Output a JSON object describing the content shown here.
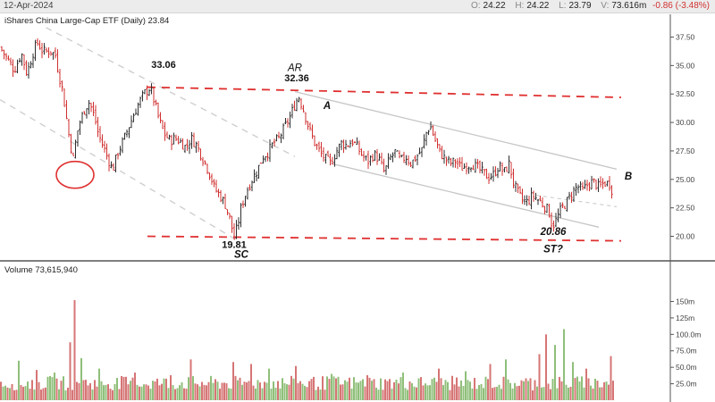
{
  "header": {
    "date": "12-Apr-2024",
    "ohlc": [
      {
        "key": "O:",
        "value": "24.22"
      },
      {
        "key": "H:",
        "value": "24.22"
      },
      {
        "key": "L:",
        "value": "23.79"
      },
      {
        "key": "V:",
        "value": "73.616m"
      }
    ],
    "change": "-0.86 (-3.48%)"
  },
  "chart_data": [
    {
      "type": "bar",
      "title": "iShares China Large-Cap ETF (Daily) 23.84",
      "ylim": [
        18,
        39.5
      ],
      "y_ticks": [
        "37.50",
        "35.00",
        "32.50",
        "30.00",
        "27.50",
        "25.00",
        "22.50",
        "20.00"
      ],
      "y_tick_values": [
        37.5,
        35,
        32.5,
        30,
        27.5,
        25,
        22.5,
        20
      ],
      "grid": false,
      "colors": {
        "up": "#2e2e2e",
        "down": "#d13030",
        "resistance": "#e03030",
        "channel": "#c6c6c6",
        "dashed_channel": "#cfcfcf"
      },
      "price_path": [
        [
          0,
          36.6
        ],
        [
          8,
          35.6
        ],
        [
          16,
          34.6
        ],
        [
          24,
          36.1
        ],
        [
          30,
          34.3
        ],
        [
          38,
          36.4
        ],
        [
          42,
          37.0
        ],
        [
          48,
          36.2
        ],
        [
          56,
          36.3
        ],
        [
          62,
          35.9
        ],
        [
          66,
          34.2
        ],
        [
          70,
          32.8
        ],
        [
          74,
          30.6
        ],
        [
          78,
          28.4
        ],
        [
          82,
          26.8
        ],
        [
          86,
          29.0
        ],
        [
          90,
          30.2
        ],
        [
          96,
          31.4
        ],
        [
          100,
          31.8
        ],
        [
          106,
          30.4
        ],
        [
          110,
          29.0
        ],
        [
          116,
          27.8
        ],
        [
          122,
          26.6
        ],
        [
          126,
          25.8
        ],
        [
          132,
          27.4
        ],
        [
          138,
          28.4
        ],
        [
          144,
          29.6
        ],
        [
          150,
          30.8
        ],
        [
          156,
          31.8
        ],
        [
          162,
          32.6
        ],
        [
          168,
          33.06
        ],
        [
          172,
          32.0
        ],
        [
          178,
          30.2
        ],
        [
          184,
          29.0
        ],
        [
          190,
          28.4
        ],
        [
          196,
          28.6
        ],
        [
          202,
          28.3
        ],
        [
          208,
          27.8
        ],
        [
          214,
          28.6
        ],
        [
          220,
          28.0
        ],
        [
          226,
          27.0
        ],
        [
          232,
          26.0
        ],
        [
          236,
          25.2
        ],
        [
          240,
          24.2
        ],
        [
          246,
          23.6
        ],
        [
          252,
          22.8
        ],
        [
          258,
          21.3
        ],
        [
          262,
          19.81
        ],
        [
          266,
          21.0
        ],
        [
          270,
          22.6
        ],
        [
          276,
          24.0
        ],
        [
          282,
          25.0
        ],
        [
          288,
          25.8
        ],
        [
          294,
          27.0
        ],
        [
          300,
          27.4
        ],
        [
          306,
          28.2
        ],
        [
          312,
          28.6
        ],
        [
          318,
          29.5
        ],
        [
          324,
          30.4
        ],
        [
          330,
          31.6
        ],
        [
          334,
          32.36
        ],
        [
          340,
          31.0
        ],
        [
          346,
          29.4
        ],
        [
          352,
          28.2
        ],
        [
          358,
          27.4
        ],
        [
          364,
          26.8
        ],
        [
          370,
          26.4
        ],
        [
          376,
          27.4
        ],
        [
          382,
          28.2
        ],
        [
          388,
          28.0
        ],
        [
          394,
          28.4
        ],
        [
          400,
          27.8
        ],
        [
          406,
          27.0
        ],
        [
          412,
          26.6
        ],
        [
          418,
          27.2
        ],
        [
          424,
          26.8
        ],
        [
          430,
          25.6
        ],
        [
          436,
          26.8
        ],
        [
          442,
          27.4
        ],
        [
          448,
          26.6
        ],
        [
          454,
          27.0
        ],
        [
          460,
          26.4
        ],
        [
          466,
          27.0
        ],
        [
          472,
          27.6
        ],
        [
          478,
          29.4
        ],
        [
          482,
          29.6
        ],
        [
          486,
          28.6
        ],
        [
          492,
          27.4
        ],
        [
          498,
          26.8
        ],
        [
          504,
          26.4
        ],
        [
          510,
          26.6
        ],
        [
          516,
          26.0
        ],
        [
          522,
          26.2
        ],
        [
          528,
          26.4
        ],
        [
          534,
          26.0
        ],
        [
          540,
          25.6
        ],
        [
          546,
          25.2
        ],
        [
          552,
          25.4
        ],
        [
          558,
          26.2
        ],
        [
          564,
          25.6
        ],
        [
          570,
          26.4
        ],
        [
          574,
          24.8
        ],
        [
          578,
          24.0
        ],
        [
          584,
          23.2
        ],
        [
          590,
          23.0
        ],
        [
          596,
          23.6
        ],
        [
          602,
          23.2
        ],
        [
          608,
          22.8
        ],
        [
          614,
          22.2
        ],
        [
          618,
          20.86
        ],
        [
          622,
          21.4
        ],
        [
          628,
          22.4
        ],
        [
          634,
          23.0
        ],
        [
          640,
          23.8
        ],
        [
          646,
          24.4
        ],
        [
          652,
          24.0
        ],
        [
          658,
          24.6
        ],
        [
          664,
          24.8
        ],
        [
          670,
          24.3
        ],
        [
          676,
          24.7
        ],
        [
          682,
          24.6
        ],
        [
          686,
          23.84
        ]
      ],
      "annotations": [
        {
          "id": "top-33",
          "text": "33.06",
          "price": 34.8
        },
        {
          "id": "ar-label",
          "text": "AR",
          "price": 34.5
        },
        {
          "id": "ar-value",
          "text": "32.36",
          "price": 33.6
        },
        {
          "id": "a-label",
          "text": "A",
          "price": 31.2
        },
        {
          "id": "b-label",
          "text": "B",
          "price": 25.0
        },
        {
          "id": "low-19",
          "text": "19.81",
          "price": 19.0
        },
        {
          "id": "sc-label",
          "text": "SC",
          "price": 18.1
        },
        {
          "id": "low-20",
          "text": "20.86",
          "price": 20.1
        },
        {
          "id": "st-label",
          "text": "ST?",
          "price": 18.6
        }
      ]
    },
    {
      "type": "bar",
      "title": "Volume 73,615,940",
      "ylim": [
        0,
        190
      ],
      "y_ticks": [
        "150m",
        "125m",
        "100.0m",
        "75.0m",
        "50.0m",
        "25.0m"
      ],
      "y_tick_values": [
        150,
        125,
        100,
        75,
        50,
        25
      ],
      "spikes": [
        [
          20,
          60
        ],
        [
          40,
          46
        ],
        [
          60,
          42
        ],
        [
          78,
          88
        ],
        [
          84,
          152
        ],
        [
          92,
          64
        ],
        [
          112,
          48
        ],
        [
          150,
          42
        ],
        [
          190,
          38
        ],
        [
          214,
          62
        ],
        [
          260,
          58
        ],
        [
          282,
          55
        ],
        [
          300,
          48
        ],
        [
          330,
          52
        ],
        [
          370,
          40
        ],
        [
          410,
          38
        ],
        [
          452,
          42
        ],
        [
          490,
          48
        ],
        [
          520,
          44
        ],
        [
          548,
          55
        ],
        [
          566,
          62
        ],
        [
          604,
          70
        ],
        [
          612,
          100
        ],
        [
          622,
          84
        ],
        [
          630,
          108
        ],
        [
          640,
          58
        ],
        [
          656,
          48
        ],
        [
          684,
          67
        ]
      ]
    }
  ]
}
